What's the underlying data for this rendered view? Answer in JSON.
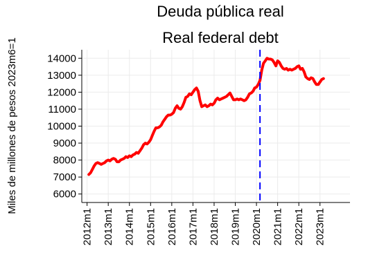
{
  "chart_data": {
    "type": "line",
    "title": "Deuda pública real",
    "subtitle": "Real federal debt",
    "ylabel": "Miles de millones de pesos 2023m6=1",
    "xlabel": "",
    "x_ticks": [
      "2012m1",
      "2013m1",
      "2014m1",
      "2015m1",
      "2016m1",
      "2017m1",
      "2018m1",
      "2019m1",
      "2020m1",
      "2021m1",
      "2022m1",
      "2023m1"
    ],
    "y_ticks": [
      6000,
      7000,
      8000,
      9000,
      10000,
      11000,
      12000,
      13000,
      14000
    ],
    "xlim": [
      "2011m10",
      "2024m6"
    ],
    "ylim": [
      5500,
      14500
    ],
    "grid": true,
    "colors": {
      "series": "#ff0000",
      "vline": "#0000ff",
      "grid": "#ebebeb"
    },
    "reference_line": {
      "x": "2020m3",
      "style": "dashed"
    },
    "series": [
      {
        "points": [
          [
            "2012m2",
            7150
          ],
          [
            "2012m3",
            7250
          ],
          [
            "2012m4",
            7450
          ],
          [
            "2012m5",
            7650
          ],
          [
            "2012m6",
            7800
          ],
          [
            "2012m7",
            7850
          ],
          [
            "2012m8",
            7800
          ],
          [
            "2012m9",
            7750
          ],
          [
            "2012m10",
            7800
          ],
          [
            "2012m11",
            7850
          ],
          [
            "2012m12",
            7950
          ],
          [
            "2013m1",
            8000
          ],
          [
            "2013m2",
            7950
          ],
          [
            "2013m3",
            8050
          ],
          [
            "2013m4",
            8100
          ],
          [
            "2013m5",
            8050
          ],
          [
            "2013m6",
            7900
          ],
          [
            "2013m7",
            7900
          ],
          [
            "2013m8",
            8000
          ],
          [
            "2013m9",
            8050
          ],
          [
            "2013m10",
            8100
          ],
          [
            "2013m11",
            8200
          ],
          [
            "2013m12",
            8150
          ],
          [
            "2014m1",
            8250
          ],
          [
            "2014m2",
            8200
          ],
          [
            "2014m3",
            8300
          ],
          [
            "2014m4",
            8350
          ],
          [
            "2014m5",
            8450
          ],
          [
            "2014m6",
            8400
          ],
          [
            "2014m7",
            8550
          ],
          [
            "2014m8",
            8700
          ],
          [
            "2014m9",
            8900
          ],
          [
            "2014m10",
            9000
          ],
          [
            "2014m11",
            8950
          ],
          [
            "2014m12",
            9050
          ],
          [
            "2015m1",
            9200
          ],
          [
            "2015m2",
            9450
          ],
          [
            "2015m3",
            9700
          ],
          [
            "2015m4",
            9900
          ],
          [
            "2015m5",
            9900
          ],
          [
            "2015m6",
            9950
          ],
          [
            "2015m7",
            10050
          ],
          [
            "2015m8",
            10250
          ],
          [
            "2015m9",
            10400
          ],
          [
            "2015m10",
            10550
          ],
          [
            "2015m11",
            10650
          ],
          [
            "2015m12",
            10650
          ],
          [
            "2016m1",
            10700
          ],
          [
            "2016m2",
            10800
          ],
          [
            "2016m3",
            11050
          ],
          [
            "2016m4",
            11200
          ],
          [
            "2016m5",
            11050
          ],
          [
            "2016m6",
            11000
          ],
          [
            "2016m7",
            11150
          ],
          [
            "2016m8",
            11400
          ],
          [
            "2016m9",
            11700
          ],
          [
            "2016m10",
            11750
          ],
          [
            "2016m11",
            11900
          ],
          [
            "2016m12",
            11850
          ],
          [
            "2017m1",
            12000
          ],
          [
            "2017m2",
            12150
          ],
          [
            "2017m3",
            12250
          ],
          [
            "2017m4",
            12050
          ],
          [
            "2017m5",
            11500
          ],
          [
            "2017m6",
            11150
          ],
          [
            "2017m7",
            11200
          ],
          [
            "2017m8",
            11250
          ],
          [
            "2017m9",
            11150
          ],
          [
            "2017m10",
            11200
          ],
          [
            "2017m11",
            11300
          ],
          [
            "2017m12",
            11250
          ],
          [
            "2018m1",
            11350
          ],
          [
            "2018m2",
            11550
          ],
          [
            "2018m3",
            11650
          ],
          [
            "2018m4",
            11550
          ],
          [
            "2018m5",
            11600
          ],
          [
            "2018m6",
            11650
          ],
          [
            "2018m7",
            11700
          ],
          [
            "2018m8",
            11750
          ],
          [
            "2018m9",
            11850
          ],
          [
            "2018m10",
            11950
          ],
          [
            "2018m11",
            11750
          ],
          [
            "2018m12",
            11550
          ],
          [
            "2019m1",
            11550
          ],
          [
            "2019m2",
            11600
          ],
          [
            "2019m3",
            11550
          ],
          [
            "2019m4",
            11600
          ],
          [
            "2019m5",
            11550
          ],
          [
            "2019m6",
            11500
          ],
          [
            "2019m7",
            11550
          ],
          [
            "2019m8",
            11700
          ],
          [
            "2019m9",
            11900
          ],
          [
            "2019m10",
            11950
          ],
          [
            "2019m11",
            12050
          ],
          [
            "2019m12",
            12250
          ],
          [
            "2020m1",
            12300
          ],
          [
            "2020m2",
            12450
          ],
          [
            "2020m3",
            12700
          ],
          [
            "2020m4",
            13300
          ],
          [
            "2020m5",
            13700
          ],
          [
            "2020m6",
            13850
          ],
          [
            "2020m7",
            14000
          ],
          [
            "2020m8",
            13950
          ],
          [
            "2020m9",
            13950
          ],
          [
            "2020m10",
            13900
          ],
          [
            "2020m11",
            13750
          ],
          [
            "2020m12",
            13550
          ],
          [
            "2021m1",
            13850
          ],
          [
            "2021m2",
            13750
          ],
          [
            "2021m3",
            13550
          ],
          [
            "2021m4",
            13400
          ],
          [
            "2021m5",
            13350
          ],
          [
            "2021m6",
            13400
          ],
          [
            "2021m7",
            13300
          ],
          [
            "2021m8",
            13350
          ],
          [
            "2021m9",
            13300
          ],
          [
            "2021m10",
            13350
          ],
          [
            "2021m11",
            13400
          ],
          [
            "2021m12",
            13500
          ],
          [
            "2022m1",
            13550
          ],
          [
            "2022m2",
            13350
          ],
          [
            "2022m3",
            13400
          ],
          [
            "2022m4",
            13200
          ],
          [
            "2022m5",
            12900
          ],
          [
            "2022m6",
            12800
          ],
          [
            "2022m7",
            12750
          ],
          [
            "2022m8",
            12850
          ],
          [
            "2022m9",
            12800
          ],
          [
            "2022m10",
            12600
          ],
          [
            "2022m11",
            12450
          ],
          [
            "2022m12",
            12450
          ],
          [
            "2023m1",
            12600
          ],
          [
            "2023m2",
            12750
          ],
          [
            "2023m3",
            12800
          ]
        ]
      }
    ]
  }
}
